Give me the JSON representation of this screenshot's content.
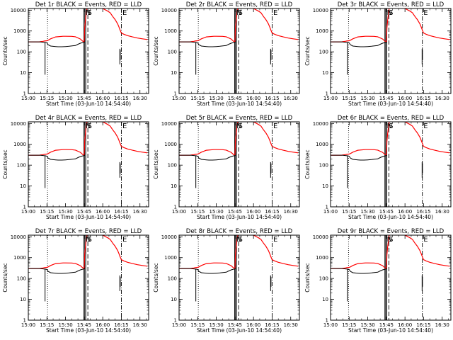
{
  "chart_data": [
    {
      "type": "line",
      "title": "Det 1r BLACK = Events, RED = LLD",
      "variant": 1
    },
    {
      "type": "line",
      "title": "Det 2r BLACK = Events, RED = LLD",
      "variant": 1
    },
    {
      "type": "line",
      "title": "Det 3r BLACK = Events, RED = LLD",
      "variant": 2
    },
    {
      "type": "line",
      "title": "Det 4r BLACK = Events, RED = LLD",
      "variant": 1
    },
    {
      "type": "line",
      "title": "Det 5r BLACK = Events, RED = LLD",
      "variant": 1
    },
    {
      "type": "line",
      "title": "Det 6r BLACK = Events, RED = LLD",
      "variant": 2
    },
    {
      "type": "line",
      "title": "Det 7r BLACK = Events, RED = LLD",
      "variant": 1
    },
    {
      "type": "line",
      "title": "Det 8r BLACK = Events, RED = LLD",
      "variant": 1
    },
    {
      "type": "line",
      "title": "Det 9r BLACK = Events, RED = LLD",
      "variant": 2
    }
  ],
  "shared": {
    "xlabel": "Start Time (03-Jun-10 14:54:40)",
    "ylabel": "Counts/sec",
    "x_tick_labels": [
      "15:00",
      "15:15",
      "15:30",
      "15:45",
      "16:00",
      "16:15",
      "16:30"
    ],
    "x_ticks_min": [
      0,
      15,
      30,
      45,
      60,
      75,
      90
    ],
    "xlim_min": [
      0,
      97
    ],
    "y_tick_labels": [
      "1",
      "10",
      "100",
      "1000",
      "10000"
    ],
    "y_ticks": [
      1,
      10,
      100,
      1000,
      10000
    ],
    "ylim": [
      1,
      12000
    ],
    "yscale": "log",
    "colors": {
      "events": "#000000",
      "lld": "#ff0000",
      "axes": "#000000"
    },
    "markers": [
      {
        "label": "N",
        "t": 45.3
      },
      {
        "label": "S",
        "t": 46.8
      },
      {
        "label": "E",
        "t": 75.0
      }
    ],
    "vlines": [
      {
        "t": 15.5,
        "style": "dotted"
      },
      {
        "t": 44.8,
        "style": "solid"
      },
      {
        "t": 45.5,
        "style": "solid"
      },
      {
        "t": 46.3,
        "style": "solid"
      },
      {
        "t": 48.0,
        "style": "dashed"
      },
      {
        "t": 75.0,
        "style": "dashdot"
      }
    ],
    "variant_markers": {
      "1": [
        {
          "label": "N",
          "t": 45.3
        },
        {
          "label": "S",
          "t": 46.8
        },
        {
          "label": "E",
          "t": 75.0
        }
      ],
      "2": [
        {
          "label": "N",
          "t": 44.5
        },
        {
          "label": "S",
          "t": 46.0
        },
        {
          "label": "E",
          "t": 74.0
        }
      ]
    },
    "variant_vlines": {
      "1": [
        {
          "t": 15.5,
          "style": "dotted"
        },
        {
          "t": 44.8,
          "style": "solid"
        },
        {
          "t": 45.5,
          "style": "solid"
        },
        {
          "t": 46.3,
          "style": "solid"
        },
        {
          "t": 48.0,
          "style": "dashed"
        },
        {
          "t": 75.0,
          "style": "dashdot"
        }
      ],
      "2": [
        {
          "t": 14.5,
          "style": "dotted"
        },
        {
          "t": 43.8,
          "style": "solid"
        },
        {
          "t": 44.5,
          "style": "solid"
        },
        {
          "t": 45.3,
          "style": "solid"
        },
        {
          "t": 47.0,
          "style": "dashed"
        },
        {
          "t": 74.0,
          "style": "dashdot"
        }
      ]
    },
    "lld_series": {
      "t": [
        0,
        9,
        10,
        12,
        13,
        15,
        16,
        18,
        22,
        28,
        30,
        35,
        38,
        42,
        43,
        44,
        45,
        45.5,
        46,
        46.8,
        47.3,
        48,
        50,
        53,
        56,
        60,
        64,
        66,
        68,
        70,
        72,
        73,
        74,
        75,
        77,
        80,
        84,
        88,
        92,
        96
      ],
      "y": [
        300,
        300,
        310,
        320,
        330,
        340,
        360,
        420,
        520,
        560,
        560,
        555,
        530,
        410,
        360,
        320,
        300,
        1500,
        3000,
        8000,
        12000,
        14000,
        14000,
        14000,
        14000,
        12000,
        9000,
        7500,
        5000,
        3500,
        2200,
        1600,
        1100,
        800,
        700,
        600,
        520,
        460,
        420,
        390
      ]
    },
    "events_series": {
      "t": [
        0,
        9,
        10,
        12,
        14,
        15,
        16,
        18,
        22,
        24,
        27,
        30,
        33,
        36,
        38,
        40,
        42,
        44,
        45,
        45.5
      ],
      "y": [
        300,
        300,
        295,
        290,
        280,
        270,
        220,
        190,
        180,
        175,
        175,
        180,
        185,
        195,
        200,
        230,
        260,
        280,
        290,
        300
      ]
    },
    "events_spikes": [
      {
        "t": 13.5,
        "ymin": 8,
        "ymax": 280
      },
      {
        "t": 73.8,
        "ymin": 25,
        "ymax": 140
      },
      {
        "t": 74.1,
        "ymin": 40,
        "ymax": 120
      }
    ]
  }
}
